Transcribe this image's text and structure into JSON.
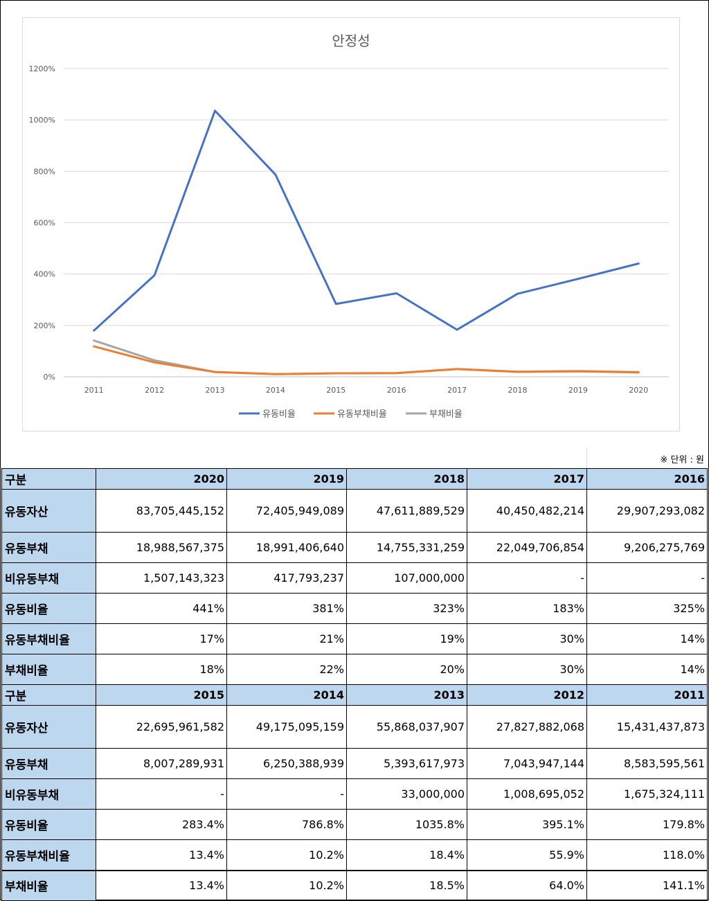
{
  "chart_data": {
    "type": "line",
    "title": "안정성",
    "categories": [
      "2011",
      "2012",
      "2013",
      "2014",
      "2015",
      "2016",
      "2017",
      "2018",
      "2019",
      "2020"
    ],
    "y_ticks": [
      "0%",
      "200%",
      "400%",
      "600%",
      "800%",
      "1000%",
      "1200%"
    ],
    "ylim": [
      0,
      1200
    ],
    "grid": true,
    "legend_position": "bottom",
    "series": [
      {
        "name": "유동비율",
        "color": "#4472c4",
        "values": [
          179.8,
          395.1,
          1035.8,
          786.8,
          283.4,
          325,
          183,
          323,
          381,
          441
        ]
      },
      {
        "name": "유동부채비율",
        "color": "#ed7d31",
        "values": [
          118.0,
          55.9,
          18.4,
          10.2,
          13.4,
          14,
          30,
          19,
          21,
          17
        ]
      },
      {
        "name": "부채비율",
        "color": "#a5a5a5",
        "values": [
          141.1,
          64.0,
          18.5,
          10.2,
          13.4,
          14,
          30,
          20,
          22,
          18
        ]
      }
    ]
  },
  "unit_note": "※ 단위 : 원",
  "table": {
    "blocks": [
      {
        "header": [
          "구분",
          "2020",
          "2019",
          "2018",
          "2017",
          "2016"
        ],
        "rows": [
          {
            "label": "유동자산",
            "values": [
              "83,705,445,152",
              "72,405,949,089",
              "47,611,889,529",
              "40,450,482,214",
              "29,907,293,082"
            ]
          },
          {
            "label": "유동부채",
            "values": [
              "18,988,567,375",
              "18,991,406,640",
              "14,755,331,259",
              "22,049,706,854",
              "9,206,275,769"
            ]
          },
          {
            "label": "비유동부채",
            "values": [
              "1,507,143,323",
              "417,793,237",
              "107,000,000",
              "-",
              "-"
            ]
          },
          {
            "label": "유동비율",
            "values": [
              "441%",
              "381%",
              "323%",
              "183%",
              "325%"
            ]
          },
          {
            "label": "유동부채비율",
            "values": [
              "17%",
              "21%",
              "19%",
              "30%",
              "14%"
            ]
          },
          {
            "label": "부채비율",
            "values": [
              "18%",
              "22%",
              "20%",
              "30%",
              "14%"
            ]
          }
        ]
      },
      {
        "header": [
          "구분",
          "2015",
          "2014",
          "2013",
          "2012",
          "2011"
        ],
        "rows": [
          {
            "label": "유동자산",
            "values": [
              "22,695,961,582",
              "49,175,095,159",
              "55,868,037,907",
              "27,827,882,068",
              "15,431,437,873"
            ]
          },
          {
            "label": "유동부채",
            "values": [
              "8,007,289,931",
              "6,250,388,939",
              "5,393,617,973",
              "7,043,947,144",
              "8,583,595,561"
            ]
          },
          {
            "label": "비유동부채",
            "values": [
              "-",
              "-",
              "33,000,000",
              "1,008,695,052",
              "1,675,324,111"
            ]
          },
          {
            "label": "유동비율",
            "values": [
              "283.4%",
              "786.8%",
              "1035.8%",
              "395.1%",
              "179.8%"
            ]
          },
          {
            "label": "유동부채비율",
            "values": [
              "13.4%",
              "10.2%",
              "18.4%",
              "55.9%",
              "118.0%"
            ]
          },
          {
            "label": "부채비율",
            "values": [
              "13.4%",
              "10.2%",
              "18.5%",
              "64.0%",
              "141.1%"
            ]
          }
        ]
      }
    ]
  }
}
